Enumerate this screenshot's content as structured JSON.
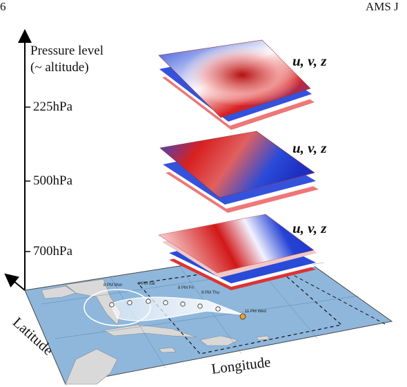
{
  "header": {
    "page_number": "6",
    "journal": "AMS J"
  },
  "axis": {
    "vertical_title_line1": "Pressure level",
    "vertical_title_line2": "(~ altitude)",
    "latitude": "Latitude",
    "longitude": "Longitude"
  },
  "levels": [
    {
      "label": "225hPa",
      "variables": "u, v, z"
    },
    {
      "label": "500hPa",
      "variables": "u, v, z"
    },
    {
      "label": "700hPa",
      "variables": "u, v, z"
    }
  ],
  "map": {
    "track_labels": [
      "8 PM Mon",
      "2 PM Sat",
      "8 PM Fri",
      "8 PM Thu",
      "11 PM Wed"
    ],
    "colors": {
      "ocean": "#8fb7dc",
      "land": "#d9d9d9",
      "track": "#ffffff",
      "warm": "#e0231f",
      "cold": "#1f3fd6"
    }
  }
}
